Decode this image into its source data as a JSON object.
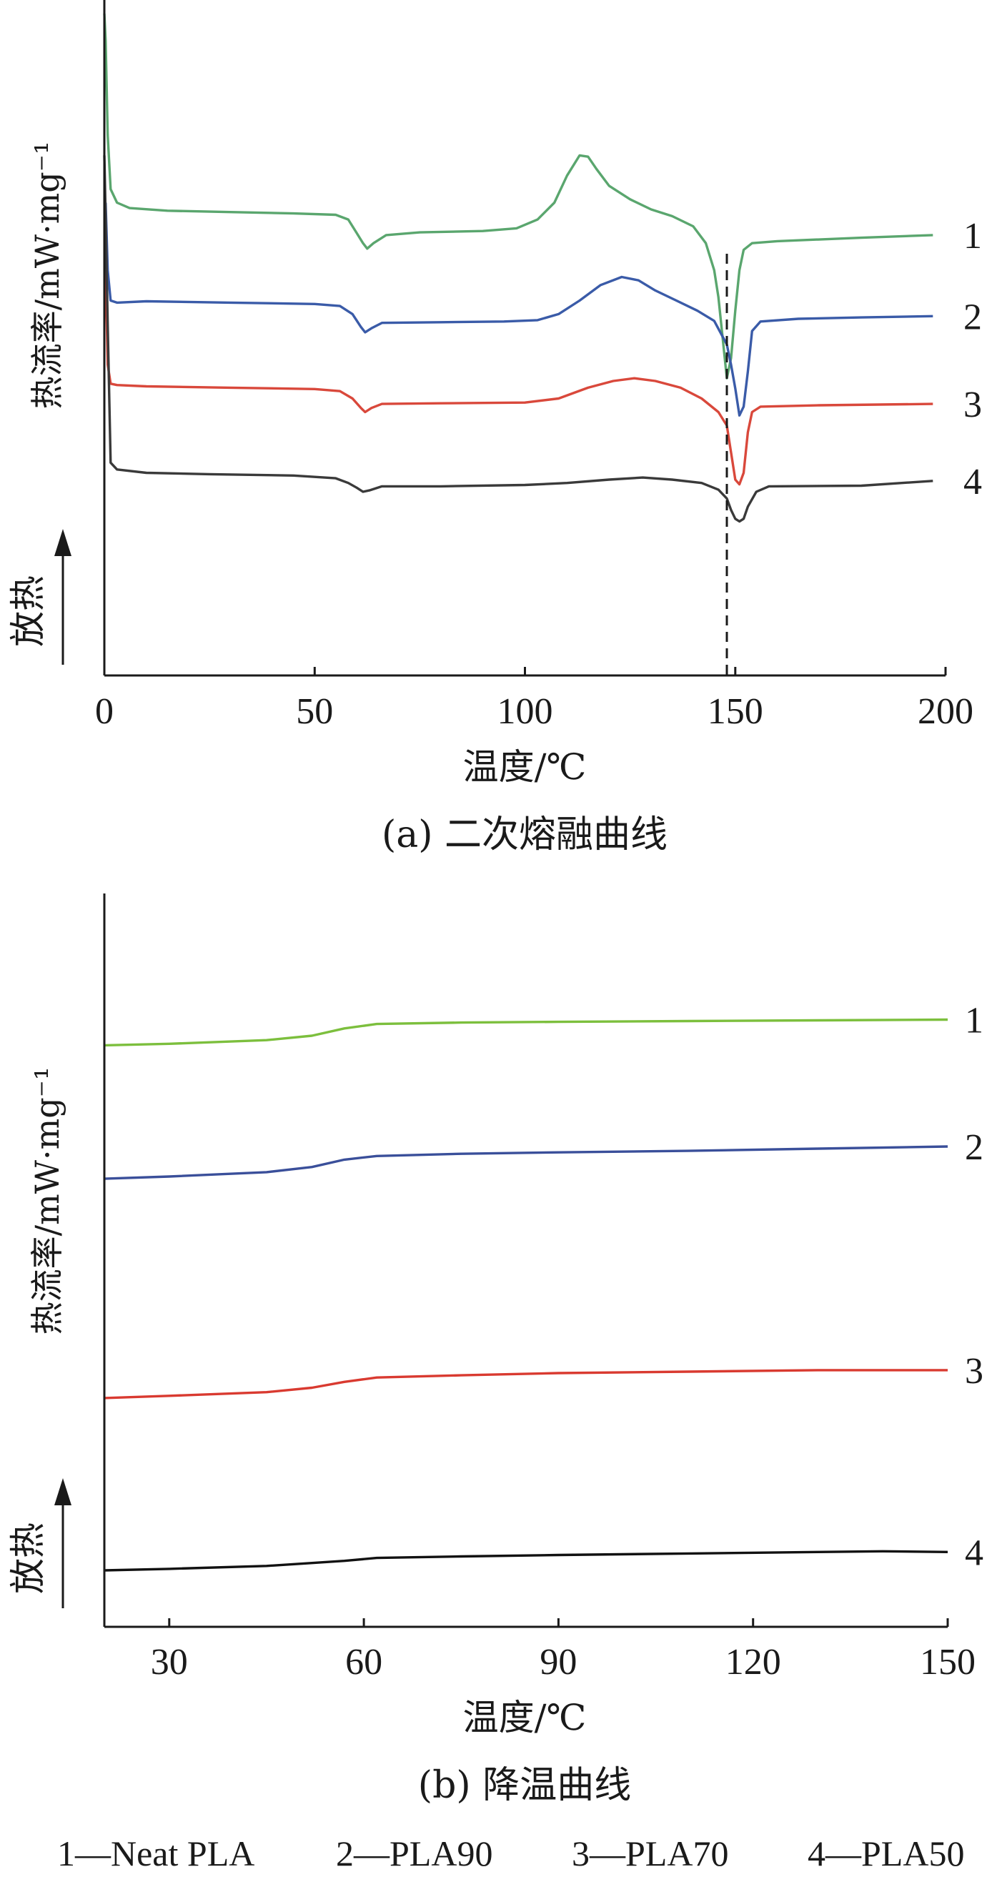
{
  "chart_data": [
    {
      "type": "line",
      "caption": "(a) 二次熔融曲线",
      "xlabel": "温度/℃",
      "ylabel": "热流率/mW·mg⁻¹",
      "exo_label": "放热",
      "xlim": [
        0,
        200
      ],
      "x_ticks": [
        "0",
        "50",
        "100",
        "150",
        "200"
      ],
      "y_ticks": [],
      "grid": false,
      "reference_line_x": 148,
      "series": [
        {
          "curve_label": "1",
          "color": "#5aa66e",
          "points": [
            [
              0,
              0.98
            ],
            [
              0.3,
              0.94
            ],
            [
              0.8,
              0.8
            ],
            [
              1.5,
              0.72
            ],
            [
              3,
              0.7
            ],
            [
              6,
              0.692
            ],
            [
              15,
              0.688
            ],
            [
              30,
              0.686
            ],
            [
              45,
              0.684
            ],
            [
              55,
              0.682
            ],
            [
              58,
              0.675
            ],
            [
              60,
              0.655
            ],
            [
              61.5,
              0.64
            ],
            [
              62.5,
              0.632
            ],
            [
              64,
              0.64
            ],
            [
              67,
              0.652
            ],
            [
              75,
              0.656
            ],
            [
              90,
              0.658
            ],
            [
              98,
              0.662
            ],
            [
              103,
              0.675
            ],
            [
              107,
              0.7
            ],
            [
              110,
              0.74
            ],
            [
              113,
              0.77
            ],
            [
              115,
              0.768
            ],
            [
              117,
              0.75
            ],
            [
              120,
              0.725
            ],
            [
              125,
              0.705
            ],
            [
              130,
              0.69
            ],
            [
              135,
              0.68
            ],
            [
              140,
              0.665
            ],
            [
              143,
              0.64
            ],
            [
              145,
              0.6
            ],
            [
              146,
              0.56
            ],
            [
              147,
              0.5
            ],
            [
              148,
              0.44
            ],
            [
              149,
              0.47
            ],
            [
              150,
              0.54
            ],
            [
              151,
              0.6
            ],
            [
              152,
              0.63
            ],
            [
              154,
              0.64
            ],
            [
              160,
              0.643
            ],
            [
              180,
              0.648
            ],
            [
              197,
              0.652
            ]
          ]
        },
        {
          "curve_label": "2",
          "color": "#3a5ba8",
          "points": [
            [
              0.3,
              0.7
            ],
            [
              0.8,
              0.6
            ],
            [
              1.5,
              0.555
            ],
            [
              3,
              0.552
            ],
            [
              10,
              0.554
            ],
            [
              30,
              0.552
            ],
            [
              50,
              0.55
            ],
            [
              56,
              0.547
            ],
            [
              59,
              0.535
            ],
            [
              61,
              0.516
            ],
            [
              62,
              0.508
            ],
            [
              63.5,
              0.514
            ],
            [
              66,
              0.522
            ],
            [
              80,
              0.523
            ],
            [
              95,
              0.524
            ],
            [
              103,
              0.526
            ],
            [
              108,
              0.535
            ],
            [
              113,
              0.555
            ],
            [
              118,
              0.578
            ],
            [
              123,
              0.59
            ],
            [
              127,
              0.585
            ],
            [
              131,
              0.57
            ],
            [
              136,
              0.555
            ],
            [
              141,
              0.54
            ],
            [
              145,
              0.525
            ],
            [
              148,
              0.49
            ],
            [
              149,
              0.46
            ],
            [
              150,
              0.425
            ],
            [
              151,
              0.385
            ],
            [
              152,
              0.398
            ],
            [
              153,
              0.45
            ],
            [
              154,
              0.51
            ],
            [
              156,
              0.524
            ],
            [
              165,
              0.528
            ],
            [
              180,
              0.53
            ],
            [
              197,
              0.532
            ]
          ]
        },
        {
          "curve_label": "3",
          "color": "#d9483b",
          "points": [
            [
              0.3,
              0.6
            ],
            [
              0.8,
              0.46
            ],
            [
              1.5,
              0.432
            ],
            [
              3,
              0.43
            ],
            [
              10,
              0.428
            ],
            [
              30,
              0.426
            ],
            [
              50,
              0.424
            ],
            [
              56,
              0.421
            ],
            [
              59,
              0.41
            ],
            [
              61,
              0.396
            ],
            [
              62,
              0.39
            ],
            [
              63.5,
              0.396
            ],
            [
              66,
              0.402
            ],
            [
              80,
              0.403
            ],
            [
              100,
              0.404
            ],
            [
              108,
              0.41
            ],
            [
              115,
              0.426
            ],
            [
              121,
              0.436
            ],
            [
              126,
              0.44
            ],
            [
              131,
              0.436
            ],
            [
              137,
              0.426
            ],
            [
              142,
              0.41
            ],
            [
              146,
              0.39
            ],
            [
              148,
              0.37
            ],
            [
              149,
              0.33
            ],
            [
              150,
              0.29
            ],
            [
              151,
              0.283
            ],
            [
              152,
              0.3
            ],
            [
              153,
              0.36
            ],
            [
              154,
              0.39
            ],
            [
              156,
              0.398
            ],
            [
              170,
              0.4
            ],
            [
              197,
              0.402
            ]
          ]
        },
        {
          "curve_label": "4",
          "color": "#3a3a3a",
          "points": [
            [
              0,
              0.77
            ],
            [
              0.3,
              0.68
            ],
            [
              0.8,
              0.52
            ],
            [
              1.5,
              0.315
            ],
            [
              3,
              0.305
            ],
            [
              10,
              0.3
            ],
            [
              25,
              0.298
            ],
            [
              45,
              0.296
            ],
            [
              55,
              0.292
            ],
            [
              58,
              0.285
            ],
            [
              60,
              0.278
            ],
            [
              61.5,
              0.272
            ],
            [
              63,
              0.274
            ],
            [
              66,
              0.28
            ],
            [
              80,
              0.28
            ],
            [
              100,
              0.282
            ],
            [
              110,
              0.285
            ],
            [
              120,
              0.29
            ],
            [
              128,
              0.293
            ],
            [
              135,
              0.29
            ],
            [
              142,
              0.285
            ],
            [
              146,
              0.275
            ],
            [
              148,
              0.262
            ],
            [
              149,
              0.245
            ],
            [
              150,
              0.232
            ],
            [
              151,
              0.228
            ],
            [
              152,
              0.232
            ],
            [
              153,
              0.25
            ],
            [
              155,
              0.272
            ],
            [
              158,
              0.28
            ],
            [
              180,
              0.281
            ],
            [
              197,
              0.288
            ]
          ]
        }
      ]
    },
    {
      "type": "line",
      "caption": "(b) 降温曲线",
      "xlabel": "温度/℃",
      "ylabel": "热流率/mW·mg⁻¹",
      "exo_label": "放热",
      "xlim": [
        20,
        150
      ],
      "x_ticks": [
        "30",
        "60",
        "90",
        "120",
        "150"
      ],
      "y_ticks": [],
      "grid": false,
      "series": [
        {
          "curve_label": "1",
          "color": "#7cbf3d",
          "points": [
            [
              20,
              0.793
            ],
            [
              30,
              0.795
            ],
            [
              45,
              0.8
            ],
            [
              52,
              0.806
            ],
            [
              57,
              0.816
            ],
            [
              62,
              0.822
            ],
            [
              75,
              0.824
            ],
            [
              90,
              0.825
            ],
            [
              110,
              0.826
            ],
            [
              130,
              0.827
            ],
            [
              150,
              0.828
            ]
          ]
        },
        {
          "curve_label": "2",
          "color": "#3a4f9a",
          "points": [
            [
              20,
              0.611
            ],
            [
              30,
              0.614
            ],
            [
              45,
              0.62
            ],
            [
              52,
              0.627
            ],
            [
              57,
              0.637
            ],
            [
              62,
              0.642
            ],
            [
              75,
              0.645
            ],
            [
              90,
              0.647
            ],
            [
              110,
              0.649
            ],
            [
              130,
              0.652
            ],
            [
              150,
              0.655
            ]
          ]
        },
        {
          "curve_label": "3",
          "color": "#d93a30",
          "points": [
            [
              20,
              0.312
            ],
            [
              30,
              0.315
            ],
            [
              45,
              0.32
            ],
            [
              52,
              0.326
            ],
            [
              57,
              0.334
            ],
            [
              62,
              0.34
            ],
            [
              75,
              0.343
            ],
            [
              90,
              0.346
            ],
            [
              110,
              0.348
            ],
            [
              130,
              0.35
            ],
            [
              150,
              0.35
            ]
          ]
        },
        {
          "curve_label": "4",
          "color": "#111111",
          "points": [
            [
              20,
              0.077
            ],
            [
              30,
              0.079
            ],
            [
              45,
              0.083
            ],
            [
              52,
              0.087
            ],
            [
              57,
              0.09
            ],
            [
              62,
              0.094
            ],
            [
              75,
              0.096
            ],
            [
              90,
              0.098
            ],
            [
              110,
              0.1
            ],
            [
              130,
              0.102
            ],
            [
              140,
              0.103
            ],
            [
              150,
              0.102
            ]
          ]
        }
      ]
    }
  ],
  "legend_entries": [
    "1—Neat PLA",
    "2—PLA90",
    "3—PLA70",
    "4—PLA50"
  ]
}
